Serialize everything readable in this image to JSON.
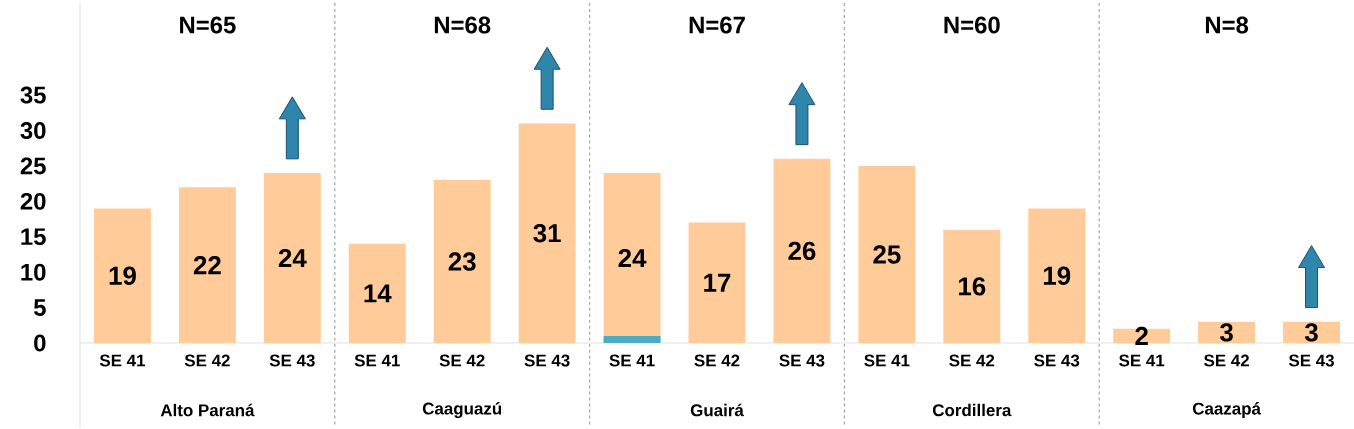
{
  "chart_data": {
    "type": "bar",
    "categories": [
      "SE 41",
      "SE 42",
      "SE 43",
      "SE 41",
      "SE 42",
      "SE 43",
      "SE 41",
      "SE 42",
      "SE 43",
      "SE 41",
      "SE 42",
      "SE 43",
      "SE 41",
      "SE 42",
      "SE 43"
    ],
    "series": [
      {
        "color": "#ffcc99",
        "values": [
          19,
          22,
          null,
          14,
          23,
          null,
          24,
          17,
          null,
          25,
          16,
          null,
          2,
          3,
          null
        ],
        "value_labels": [
          "19",
          "22",
          null,
          "14",
          "23",
          null,
          "24",
          "17",
          null,
          "25",
          "16",
          null,
          "2",
          "3",
          null
        ]
      },
      {
        "color": "#ffcc99",
        "values": [
          null,
          null,
          24,
          null,
          null,
          31,
          null,
          null,
          26,
          null,
          null,
          19,
          null,
          null,
          3
        ],
        "value_labels": [
          null,
          null,
          "24",
          null,
          null,
          "31",
          null,
          null,
          "26",
          null,
          null,
          "19",
          null,
          null,
          "3"
        ]
      },
      {
        "color": "#4bacc6",
        "values": [
          null,
          null,
          null,
          null,
          null,
          null,
          1,
          null,
          null,
          null,
          null,
          null,
          null,
          null,
          null
        ]
      }
    ],
    "ylim": [
      0,
      48
    ],
    "yticks": [
      0,
      5,
      10,
      15,
      20,
      25,
      30,
      35
    ],
    "annotations": [
      "N=65",
      "N=68",
      "N=67",
      "N=60",
      "N=8",
      "Alto Paraná",
      "Caaguazú",
      "Guairá",
      "Cordillera",
      "Caazapá"
    ]
  }
}
